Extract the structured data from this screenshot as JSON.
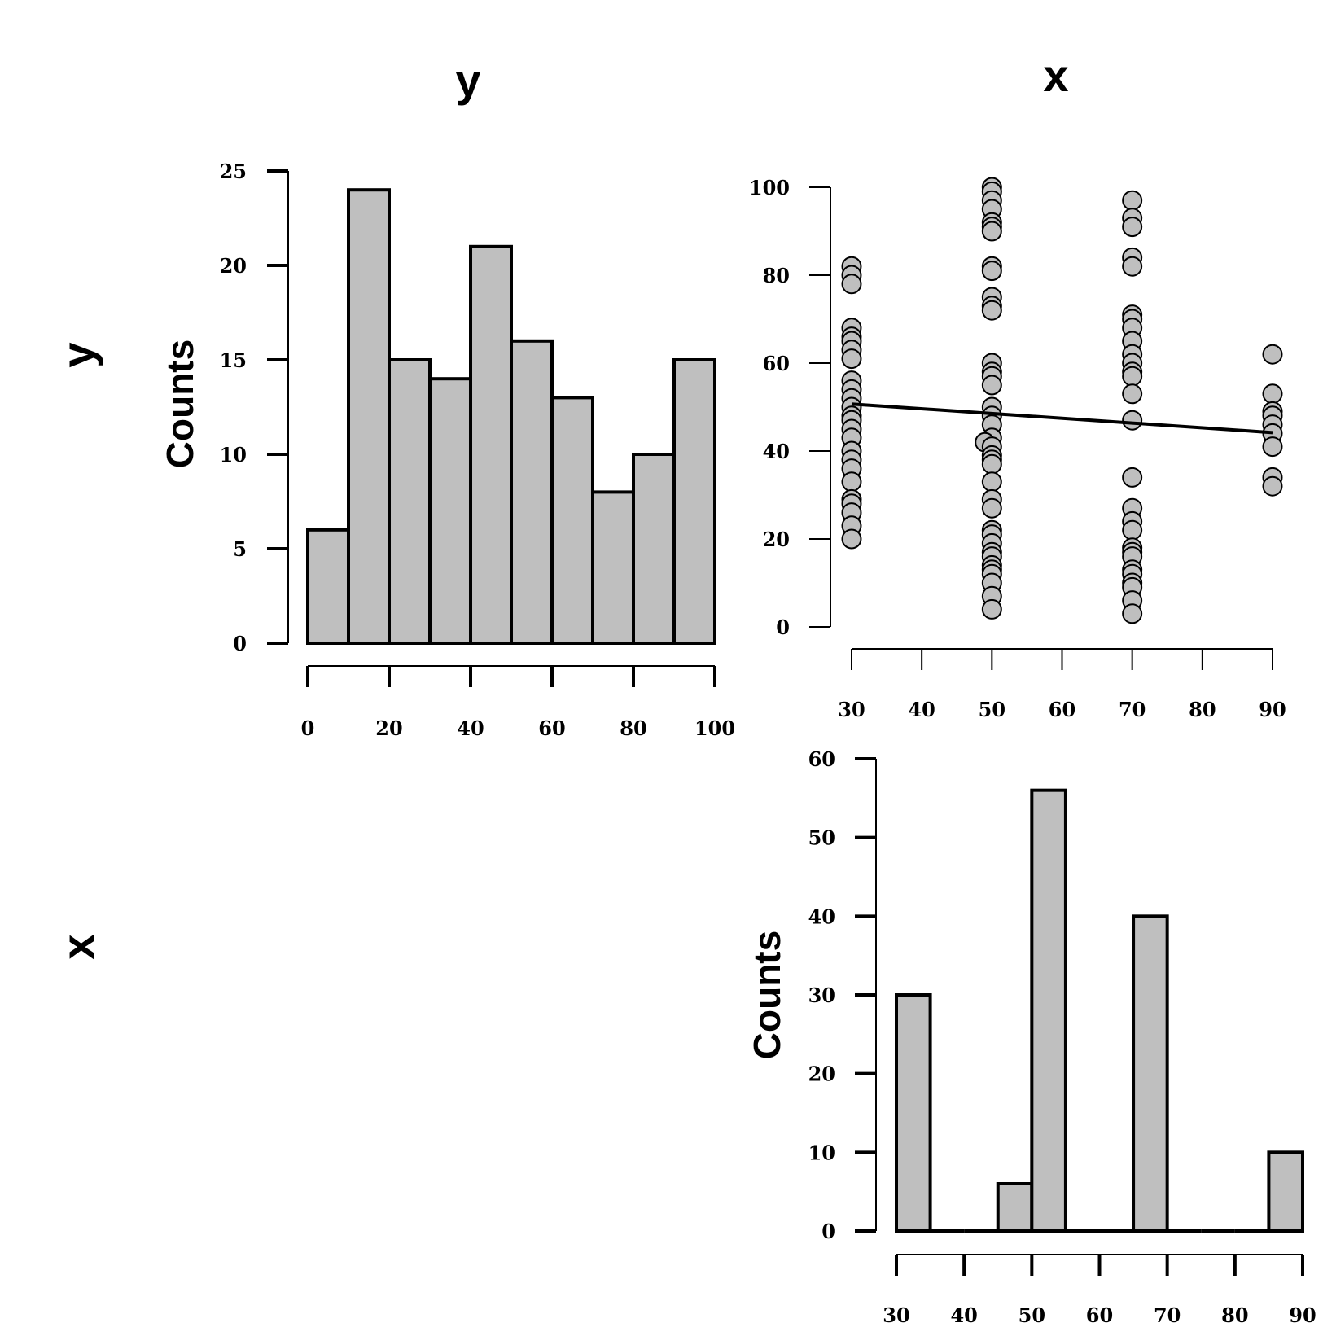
{
  "colors": {
    "fill": "#bfbfbf",
    "stroke": "#000000",
    "background": "#ffffff"
  },
  "matrix": {
    "column_labels": [
      "y",
      "x"
    ],
    "row_labels": [
      "y",
      "x"
    ]
  },
  "chart_data": [
    {
      "id": "hist_y",
      "type": "bar",
      "subtype": "histogram",
      "variable": "y",
      "ylabel": "Counts",
      "bin_edges": [
        0,
        10,
        20,
        30,
        40,
        50,
        60,
        70,
        80,
        90,
        100
      ],
      "values": [
        6,
        24,
        15,
        14,
        21,
        16,
        13,
        8,
        10,
        15
      ],
      "xlim": [
        0,
        100
      ],
      "ylim": [
        0,
        25
      ],
      "x_ticks": [
        0,
        20,
        40,
        60,
        80,
        100
      ],
      "y_ticks": [
        0,
        5,
        10,
        15,
        20,
        25
      ],
      "grid": false
    },
    {
      "id": "scatter_x_y",
      "type": "scatter",
      "xlabel": "x",
      "ylabel": "y",
      "xlim": [
        30,
        90
      ],
      "ylim": [
        0,
        100
      ],
      "x_ticks": [
        30,
        40,
        50,
        60,
        70,
        80,
        90
      ],
      "y_ticks": [
        0,
        20,
        40,
        60,
        80,
        100
      ],
      "grid": false,
      "points": [
        {
          "x": 30,
          "y": 82
        },
        {
          "x": 30,
          "y": 80
        },
        {
          "x": 30,
          "y": 78
        },
        {
          "x": 30,
          "y": 68
        },
        {
          "x": 30,
          "y": 66
        },
        {
          "x": 30,
          "y": 65
        },
        {
          "x": 30,
          "y": 63
        },
        {
          "x": 30,
          "y": 61
        },
        {
          "x": 30,
          "y": 56
        },
        {
          "x": 30,
          "y": 54
        },
        {
          "x": 30,
          "y": 52
        },
        {
          "x": 30,
          "y": 50
        },
        {
          "x": 30,
          "y": 48
        },
        {
          "x": 30,
          "y": 47
        },
        {
          "x": 30,
          "y": 45
        },
        {
          "x": 30,
          "y": 43
        },
        {
          "x": 30,
          "y": 40
        },
        {
          "x": 30,
          "y": 38
        },
        {
          "x": 30,
          "y": 36
        },
        {
          "x": 30,
          "y": 33
        },
        {
          "x": 30,
          "y": 29
        },
        {
          "x": 30,
          "y": 28
        },
        {
          "x": 30,
          "y": 26
        },
        {
          "x": 30,
          "y": 23
        },
        {
          "x": 30,
          "y": 20
        },
        {
          "x": 50,
          "y": 100
        },
        {
          "x": 50,
          "y": 99
        },
        {
          "x": 50,
          "y": 97
        },
        {
          "x": 50,
          "y": 95
        },
        {
          "x": 50,
          "y": 92
        },
        {
          "x": 50,
          "y": 91
        },
        {
          "x": 50,
          "y": 90
        },
        {
          "x": 50,
          "y": 82
        },
        {
          "x": 50,
          "y": 81
        },
        {
          "x": 50,
          "y": 75
        },
        {
          "x": 50,
          "y": 73
        },
        {
          "x": 50,
          "y": 72
        },
        {
          "x": 50,
          "y": 60
        },
        {
          "x": 50,
          "y": 58
        },
        {
          "x": 50,
          "y": 57
        },
        {
          "x": 50,
          "y": 55
        },
        {
          "x": 50,
          "y": 50
        },
        {
          "x": 50,
          "y": 48
        },
        {
          "x": 50,
          "y": 46
        },
        {
          "x": 50,
          "y": 43
        },
        {
          "x": 49,
          "y": 42
        },
        {
          "x": 50,
          "y": 41
        },
        {
          "x": 50,
          "y": 39
        },
        {
          "x": 50,
          "y": 38
        },
        {
          "x": 50,
          "y": 37
        },
        {
          "x": 50,
          "y": 33
        },
        {
          "x": 50,
          "y": 29
        },
        {
          "x": 50,
          "y": 27
        },
        {
          "x": 50,
          "y": 22
        },
        {
          "x": 50,
          "y": 21
        },
        {
          "x": 50,
          "y": 19
        },
        {
          "x": 50,
          "y": 17
        },
        {
          "x": 50,
          "y": 16
        },
        {
          "x": 50,
          "y": 14
        },
        {
          "x": 50,
          "y": 13
        },
        {
          "x": 50,
          "y": 12
        },
        {
          "x": 50,
          "y": 10
        },
        {
          "x": 50,
          "y": 7
        },
        {
          "x": 50,
          "y": 4
        },
        {
          "x": 70,
          "y": 97
        },
        {
          "x": 70,
          "y": 93
        },
        {
          "x": 70,
          "y": 91
        },
        {
          "x": 70,
          "y": 84
        },
        {
          "x": 70,
          "y": 82
        },
        {
          "x": 70,
          "y": 71
        },
        {
          "x": 70,
          "y": 70
        },
        {
          "x": 70,
          "y": 68
        },
        {
          "x": 70,
          "y": 65
        },
        {
          "x": 70,
          "y": 62
        },
        {
          "x": 70,
          "y": 60
        },
        {
          "x": 70,
          "y": 58
        },
        {
          "x": 70,
          "y": 57
        },
        {
          "x": 70,
          "y": 53
        },
        {
          "x": 70,
          "y": 47
        },
        {
          "x": 70,
          "y": 34
        },
        {
          "x": 70,
          "y": 27
        },
        {
          "x": 70,
          "y": 24
        },
        {
          "x": 70,
          "y": 22
        },
        {
          "x": 70,
          "y": 18
        },
        {
          "x": 70,
          "y": 17
        },
        {
          "x": 70,
          "y": 16
        },
        {
          "x": 70,
          "y": 13
        },
        {
          "x": 70,
          "y": 12
        },
        {
          "x": 70,
          "y": 10
        },
        {
          "x": 70,
          "y": 9
        },
        {
          "x": 70,
          "y": 6
        },
        {
          "x": 70,
          "y": 3
        },
        {
          "x": 90,
          "y": 62
        },
        {
          "x": 90,
          "y": 53
        },
        {
          "x": 90,
          "y": 49
        },
        {
          "x": 90,
          "y": 48
        },
        {
          "x": 90,
          "y": 46
        },
        {
          "x": 90,
          "y": 44
        },
        {
          "x": 90,
          "y": 41
        },
        {
          "x": 90,
          "y": 34
        },
        {
          "x": 90,
          "y": 32
        }
      ],
      "fit_line": {
        "x": [
          30,
          90
        ],
        "y": [
          50.7,
          44.2
        ]
      }
    },
    {
      "id": "hist_x",
      "type": "bar",
      "subtype": "histogram",
      "variable": "x",
      "ylabel": "Counts",
      "bin_edges": [
        30,
        35,
        40,
        45,
        50,
        55,
        60,
        65,
        70,
        75,
        80,
        85,
        90
      ],
      "values": [
        30,
        0,
        0,
        6,
        56,
        0,
        0,
        40,
        0,
        0,
        0,
        10
      ],
      "xlim": [
        30,
        90
      ],
      "ylim": [
        0,
        60
      ],
      "x_ticks": [
        30,
        40,
        50,
        60,
        70,
        80,
        90
      ],
      "y_ticks": [
        0,
        10,
        20,
        30,
        40,
        50,
        60
      ],
      "grid": false
    }
  ]
}
